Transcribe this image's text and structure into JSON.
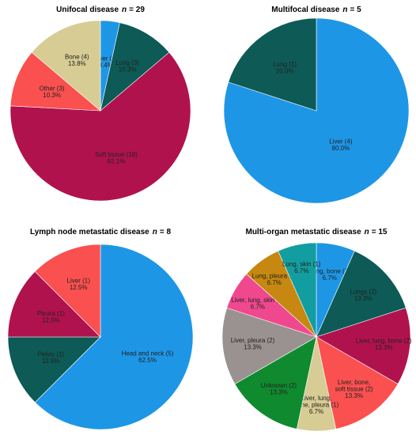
{
  "colors": {
    "blue": "#1E96E6",
    "teal": "#0D5A56",
    "crimson": "#B0124E",
    "salmon": "#FA5050",
    "khaki": "#D7CC94",
    "gray": "#999290",
    "green": "#0F8A2E",
    "pink": "#F0488F",
    "gold": "#C68810",
    "cyan": "#129EA0"
  },
  "chart_data": [
    {
      "type": "pie",
      "title": "Unifocal disease",
      "n_label": "n",
      "n_text": "= 29",
      "slices": [
        {
          "label": "Liver (1)",
          "percent": "3.4%",
          "value": 1,
          "color": "blue"
        },
        {
          "label": "Lung (3)",
          "percent": "10.3%",
          "value": 3,
          "color": "teal"
        },
        {
          "label": "Soft tissue (18)",
          "percent": "62.1%",
          "value": 18,
          "color": "crimson"
        },
        {
          "label": "Other (3)",
          "percent": "10.3%",
          "value": 3,
          "color": "salmon"
        },
        {
          "label": "Bone (4)",
          "percent": "13.8%",
          "value": 4,
          "color": "khaki"
        }
      ]
    },
    {
      "type": "pie",
      "title": "Multifocal disease",
      "n_label": "n",
      "n_text": "= 5",
      "slices": [
        {
          "label": "Liver (4)",
          "percent": "80.0%",
          "value": 4,
          "color": "blue"
        },
        {
          "label": "Lung (1)",
          "percent": "20.0%",
          "value": 1,
          "color": "teal"
        }
      ]
    },
    {
      "type": "pie",
      "title": "Lymph node metastatic disease",
      "n_label": "n",
      "n_text": "= 8",
      "slices": [
        {
          "label": "Head and neck (5)",
          "percent": "62.5%",
          "value": 5,
          "color": "blue"
        },
        {
          "label": "Pelvis (1)",
          "percent": "12.5%",
          "value": 1,
          "color": "teal"
        },
        {
          "label": "Pleura (1)",
          "percent": "12.5%",
          "value": 1,
          "color": "crimson"
        },
        {
          "label": "Liver (1)",
          "percent": "12.5%",
          "value": 1,
          "color": "salmon"
        }
      ]
    },
    {
      "type": "pie",
      "title": "Multi-organ metastatic disease",
      "n_label": "n",
      "n_text": "= 15",
      "slices": [
        {
          "label": "Lung, bone (1)",
          "percent": "6.7%",
          "value": 1,
          "color": "blue"
        },
        {
          "label": "Lungs (2)",
          "percent": "13.3%",
          "value": 2,
          "color": "teal"
        },
        {
          "label": "Liver, lung, bone (2)",
          "percent": "13.3%",
          "value": 2,
          "color": "crimson"
        },
        {
          "label": "Liver, bone, soft tissue (2)",
          "percent": "13.3%",
          "value": 2,
          "color": "salmon"
        },
        {
          "label": "Liver, lung, bone, pleura (1)",
          "percent": "6.7%",
          "value": 1,
          "color": "khaki"
        },
        {
          "label": "Unknown (2)",
          "percent": "13.3%",
          "value": 2,
          "color": "green"
        },
        {
          "label": "Liver, pleura (2)",
          "percent": "13.3%",
          "value": 2,
          "color": "gray"
        },
        {
          "label": "Liver, lung, skin (1)",
          "percent": "6.7%",
          "value": 1,
          "color": "pink"
        },
        {
          "label": "Lung, pleura (1)",
          "percent": "6.7%",
          "value": 1,
          "color": "gold"
        },
        {
          "label": "Lung, skin (1)",
          "percent": "6.7%",
          "value": 1,
          "color": "cyan"
        }
      ]
    }
  ]
}
